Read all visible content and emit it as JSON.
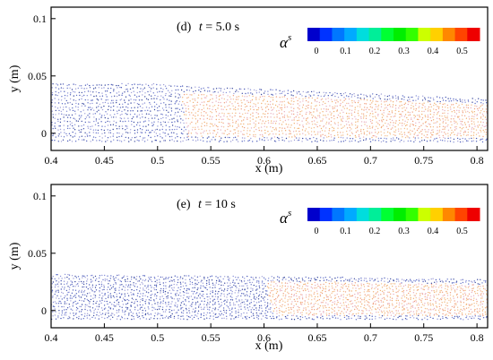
{
  "chart_data": [
    {
      "type": "scatter",
      "panel_label": "(d)",
      "time_var": "t",
      "time_text": " = 5.0 s",
      "xlabel": "x (m)",
      "ylabel": "y (m)",
      "xlim": [
        0.4,
        0.81
      ],
      "ylim": [
        -0.015,
        0.11
      ],
      "xticks": [
        0.4,
        0.45,
        0.5,
        0.55,
        0.6,
        0.65,
        0.7,
        0.75,
        0.8
      ],
      "xtick_labels": [
        "0.4",
        "0.45",
        "0.5",
        "0.55",
        "0.6",
        "0.65",
        "0.7",
        "0.75",
        "0.8"
      ],
      "yticks": [
        0,
        0.05,
        0.1
      ],
      "ytick_labels": [
        "0",
        "0.05",
        "0.1"
      ],
      "colorbar": {
        "symbol": "α",
        "superscript": "s",
        "ticks": [
          0,
          0.1,
          0.2,
          0.3,
          0.4,
          0.5
        ],
        "tick_labels": [
          "0",
          "0.1",
          "0.2",
          "0.3",
          "0.4",
          "0.5"
        ],
        "colors": [
          "#0000cc",
          "#0033ff",
          "#0077ff",
          "#00aaff",
          "#00dddd",
          "#00ee99",
          "#00ff33",
          "#00ee00",
          "#33ff00",
          "#ccff00",
          "#ffd000",
          "#ff8800",
          "#ff4400",
          "#ee0000"
        ]
      },
      "regions": {
        "bed_surface": [
          [
            0.4,
            0.044
          ],
          [
            0.5,
            0.044
          ],
          [
            0.52,
            0.042
          ],
          [
            0.6,
            0.039
          ],
          [
            0.7,
            0.035
          ],
          [
            0.81,
            0.03
          ]
        ],
        "bed_bottom": -0.008,
        "high_fraction_start_x": 0.52,
        "high_fraction_value": 0.45,
        "low_fraction_value": 0.05
      }
    },
    {
      "type": "scatter",
      "panel_label": "(e)",
      "time_var": "t",
      "time_text": " = 10 s",
      "xlabel": "x (m)",
      "ylabel": "y (m)",
      "xlim": [
        0.4,
        0.81
      ],
      "ylim": [
        -0.015,
        0.11
      ],
      "xticks": [
        0.4,
        0.45,
        0.5,
        0.55,
        0.6,
        0.65,
        0.7,
        0.75,
        0.8
      ],
      "xtick_labels": [
        "0.4",
        "0.45",
        "0.5",
        "0.55",
        "0.6",
        "0.65",
        "0.7",
        "0.75",
        "0.8"
      ],
      "yticks": [
        0,
        0.05,
        0.1
      ],
      "ytick_labels": [
        "0",
        "0.05",
        "0.1"
      ],
      "colorbar": {
        "symbol": "α",
        "superscript": "s",
        "ticks": [
          0,
          0.1,
          0.2,
          0.3,
          0.4,
          0.5
        ],
        "tick_labels": [
          "0",
          "0.1",
          "0.2",
          "0.3",
          "0.4",
          "0.5"
        ],
        "colors": [
          "#0000cc",
          "#0033ff",
          "#0077ff",
          "#00aaff",
          "#00dddd",
          "#00ee99",
          "#00ff33",
          "#00ee00",
          "#33ff00",
          "#ccff00",
          "#ffd000",
          "#ff8800",
          "#ff4400",
          "#ee0000"
        ]
      },
      "regions": {
        "bed_surface": [
          [
            0.4,
            0.032
          ],
          [
            0.5,
            0.031
          ],
          [
            0.6,
            0.03
          ],
          [
            0.7,
            0.029
          ],
          [
            0.81,
            0.027
          ]
        ],
        "bed_bottom": -0.008,
        "high_fraction_start_x": 0.6,
        "high_fraction_value": 0.35,
        "low_fraction_value": 0.05
      }
    }
  ]
}
